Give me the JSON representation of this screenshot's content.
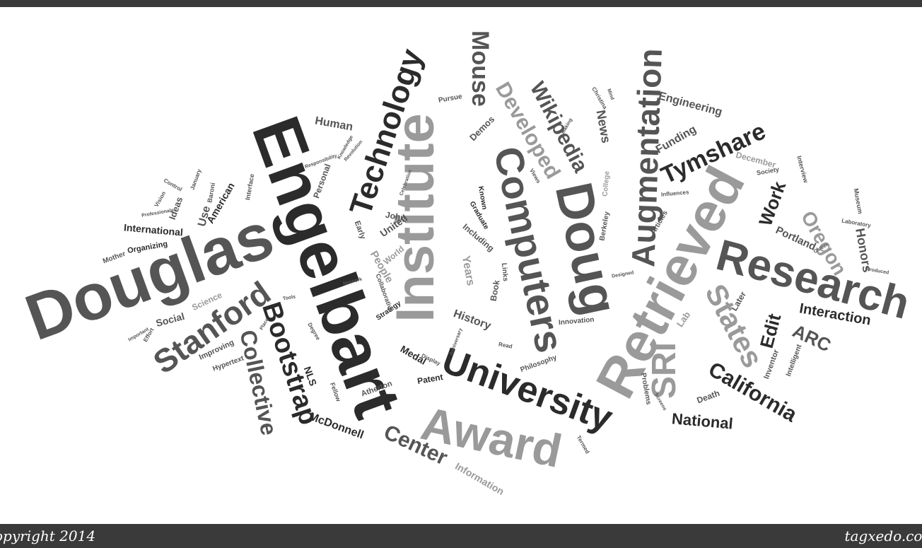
{
  "footer": {
    "left": "opyright 2014",
    "right": "tagxedo.cor"
  },
  "colors": {
    "dark": "#2b2b2b",
    "mid": "#5a5a5a",
    "light": "#9a9a9a",
    "bar": "#3a3a3a"
  },
  "words": [
    "Douglas",
    "Engelbart",
    "Institute",
    "Doug",
    "Retrieved",
    "Research",
    "University",
    "Award",
    "Computers",
    "Technology",
    "Augmentation",
    "Stanford",
    "Bootstrap",
    "Collective",
    "Center",
    "SRI",
    "States",
    "Wikipedia",
    "Developed",
    "Mouse",
    "Tymshare",
    "Oregon",
    "California",
    "National",
    "Work",
    "Edit",
    "ARC",
    "Interaction",
    "Honors",
    "Portland",
    "Engineering",
    "Funding",
    "News",
    "Human",
    "International",
    "American",
    "Use",
    "Ideas",
    "Social",
    "Science",
    "NLS",
    "McDonnell",
    "Information",
    "Medal",
    "History",
    "Years",
    "People",
    "United",
    "World",
    "John",
    "Demos",
    "Inventor",
    "Intelligent",
    "Later",
    "Lab",
    "December",
    "Personal",
    "Organizing",
    "Mother",
    "Patent",
    "Atherton",
    "Improving",
    "Hypertext",
    "Including",
    "Early",
    "Graduate",
    "Book",
    "Known",
    "Pursue",
    "Links",
    "Innovation",
    "Philosophy",
    "Strategy",
    "Collaborative",
    "Problems",
    "Death",
    "Articles",
    "College",
    "Berkeley",
    "Interview",
    "Society",
    "Museum",
    "Laboratory",
    "Control",
    "Vision",
    "Interface",
    "Baroni",
    "January",
    "Effort",
    "Fellow",
    "Degree",
    "Display",
    "Read",
    "Views",
    "Termed",
    "Screens",
    "Designed",
    "Influences",
    "Christina",
    "Career",
    "Produced",
    "Knowledge",
    "Revolution",
    "Celebration",
    "Anniversary",
    "Responsibility",
    "Professionals",
    "Tools",
    "Place",
    "Network",
    "Important",
    "Mind",
    "Making"
  ]
}
